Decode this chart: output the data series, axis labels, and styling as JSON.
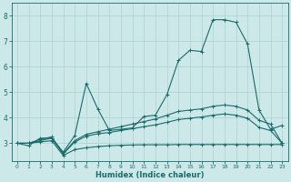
{
  "x": [
    0,
    1,
    2,
    3,
    4,
    5,
    6,
    7,
    8,
    9,
    10,
    11,
    12,
    13,
    14,
    15,
    16,
    17,
    18,
    19,
    20,
    21,
    22,
    23
  ],
  "line_main": [
    3.0,
    2.9,
    3.2,
    3.2,
    2.65,
    3.3,
    5.35,
    4.35,
    3.5,
    3.55,
    3.6,
    4.05,
    4.1,
    4.9,
    6.25,
    6.65,
    6.6,
    7.85,
    7.85,
    7.75,
    6.9,
    4.3,
    3.55,
    3.7
  ],
  "line_upper": [
    3.0,
    3.0,
    3.15,
    3.25,
    2.6,
    3.1,
    3.35,
    3.45,
    3.55,
    3.65,
    3.75,
    3.85,
    3.95,
    4.1,
    4.25,
    4.3,
    4.35,
    4.45,
    4.5,
    4.45,
    4.3,
    3.9,
    3.75,
    3.0
  ],
  "line_mid": [
    3.0,
    3.0,
    3.1,
    3.2,
    2.58,
    3.05,
    3.28,
    3.37,
    3.42,
    3.5,
    3.57,
    3.65,
    3.72,
    3.82,
    3.93,
    3.98,
    4.03,
    4.1,
    4.15,
    4.1,
    3.98,
    3.62,
    3.5,
    3.0
  ],
  "line_lower": [
    3.0,
    3.0,
    3.05,
    3.1,
    2.52,
    2.75,
    2.82,
    2.87,
    2.9,
    2.92,
    2.93,
    2.94,
    2.94,
    2.94,
    2.95,
    2.95,
    2.95,
    2.95,
    2.95,
    2.95,
    2.95,
    2.95,
    2.95,
    2.95
  ],
  "main_color": "#1a6b6b",
  "bg_color": "#cce8e8",
  "grid_color": "#b0d4d4",
  "xlabel": "Humidex (Indice chaleur)",
  "xlim": [
    -0.5,
    23.5
  ],
  "ylim": [
    2.3,
    8.5
  ],
  "yticks": [
    3,
    4,
    5,
    6,
    7,
    8
  ],
  "xticks": [
    0,
    1,
    2,
    3,
    4,
    5,
    6,
    7,
    8,
    9,
    10,
    11,
    12,
    13,
    14,
    15,
    16,
    17,
    18,
    19,
    20,
    21,
    22,
    23
  ],
  "xlabel_fontsize": 6.0,
  "ytick_fontsize": 5.5,
  "xtick_fontsize": 4.3,
  "lw": 0.8,
  "marker_size": 3.0
}
